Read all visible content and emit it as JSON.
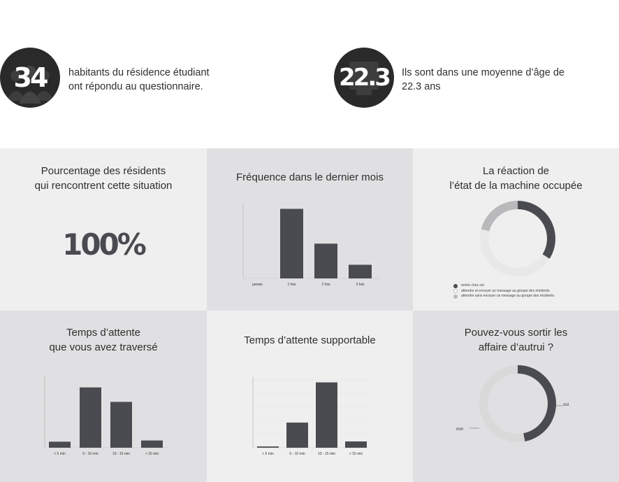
{
  "stats": [
    {
      "value": "34",
      "text_line1": "habitants du résidence étudiant",
      "text_line2": "ont répondu au questionnaire."
    },
    {
      "value": "22.3",
      "text_line1": "Ils sont dans une moyenne d’âge de",
      "text_line2": "22.3 ans"
    }
  ],
  "panels": {
    "pct": {
      "title_line1": "Pourcentage des résidents",
      "title_line2": "qui rencontrent cette situation",
      "value": "100%"
    },
    "freq": {
      "title_line1": "Fréquence dans le dernier mois"
    },
    "reaction": {
      "title_line1": "La réaction de",
      "title_line2": "l’état de la machine occupée"
    },
    "wait": {
      "title_line1": "Temps d’attente",
      "title_line2": "que vous avez traversé"
    },
    "support": {
      "title_line1": "Temps d’attente supportable"
    },
    "sortir": {
      "title_line1": "Pouvez-vous sortir les",
      "title_line2": "affaire d’autrui ?"
    }
  },
  "colors": {
    "bar": "#4a4b50",
    "dark": "#4a4b50",
    "mid": "#b9b9bb",
    "light": "#d9d9da",
    "grid": "#e4e4e4"
  },
  "chart_data": [
    {
      "id": "freq",
      "type": "bar",
      "title": "Fréquence dans le dernier mois",
      "categories": [
        "jamais",
        "1 fois",
        "2 fois",
        "3 fois"
      ],
      "values": [
        0,
        56,
        28,
        11
      ],
      "grid": true
    },
    {
      "id": "reaction",
      "type": "pie",
      "title": "La réaction de l’état de la machine occupée",
      "categories": [
        "rentre chez soi",
        "attendre et envoyer un message au groupe des résidents",
        "attendre sans envoyer un message au groupe des résidents"
      ],
      "values": [
        34,
        45,
        21
      ],
      "legend": "bottom"
    },
    {
      "id": "wait",
      "type": "bar",
      "title": "Temps d’attente que vous avez traversé",
      "categories": [
        "< 5 min",
        "5 - 10 min",
        "10 - 15 min",
        "> 15 min"
      ],
      "values": [
        5,
        50,
        38,
        6
      ],
      "grid": true
    },
    {
      "id": "support",
      "type": "bar",
      "title": "Temps d’attente supportable",
      "categories": [
        "< 5 min",
        "5 - 10 min",
        "10 - 15 min",
        "> 15 min"
      ],
      "values": [
        1,
        20,
        52,
        5
      ],
      "grid": true
    },
    {
      "id": "sortir",
      "type": "pie",
      "title": "Pouvez-vous sortir les affaire d’autrui ?",
      "categories": [
        "oui",
        "non"
      ],
      "values": [
        47,
        53
      ]
    }
  ]
}
